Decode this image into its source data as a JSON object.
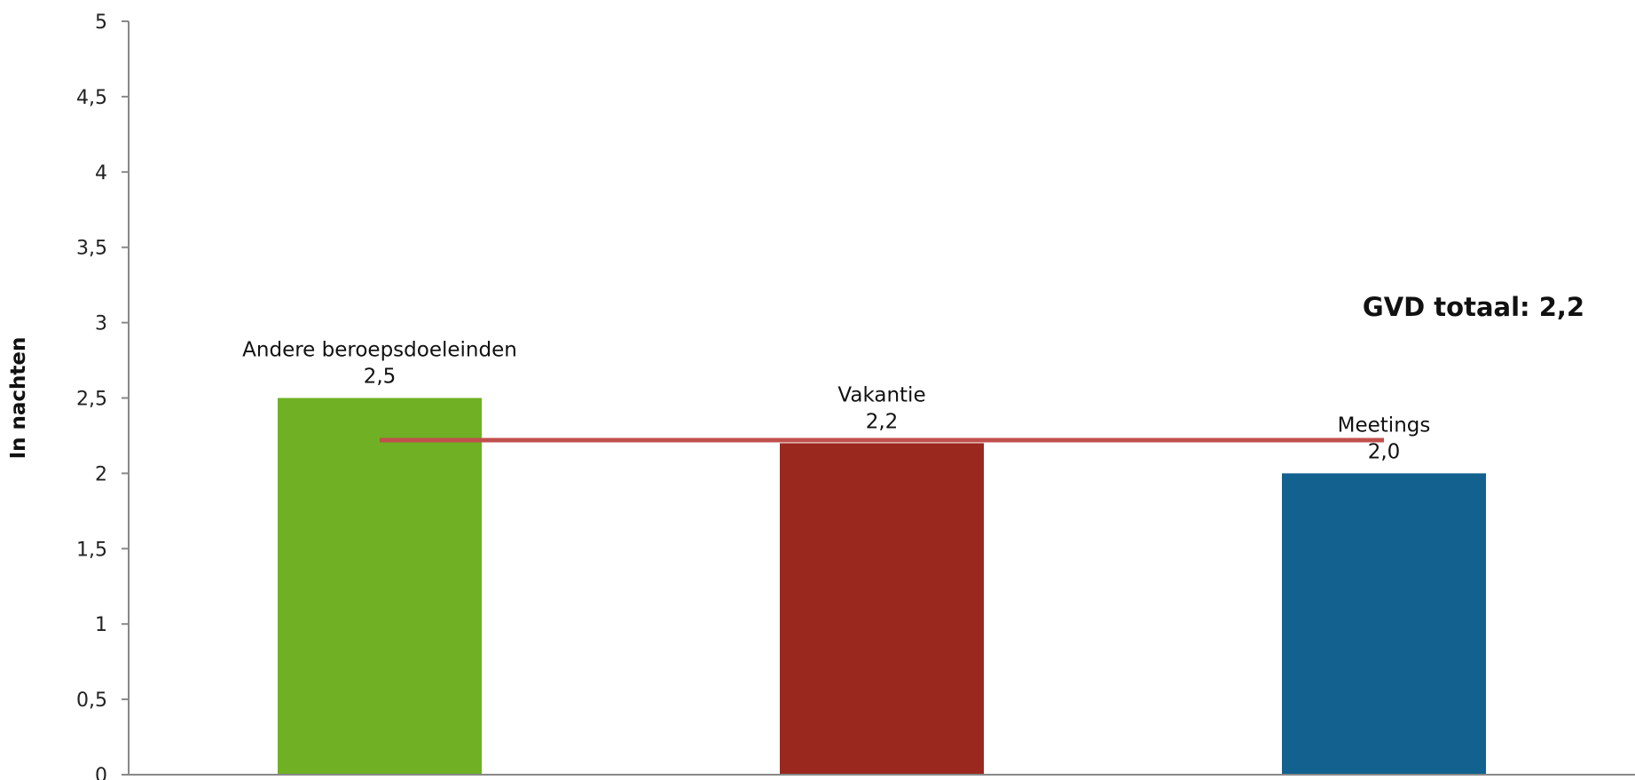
{
  "chart_data": {
    "type": "bar",
    "categories": [
      "Andere beroepsdoeleinden",
      "Vakantie",
      "Meetings"
    ],
    "values": [
      2.5,
      2.2,
      2.0
    ],
    "value_labels": [
      "2,5",
      "2,2",
      "2,0"
    ],
    "colors": [
      "#6fb024",
      "#9a281e",
      "#12618f"
    ],
    "ylabel": "In nachten",
    "ylim": [
      0,
      5
    ],
    "yticks": [
      0,
      0.5,
      1,
      1.5,
      2,
      2.5,
      3,
      3.5,
      4,
      4.5,
      5
    ],
    "ytick_labels": [
      "0",
      "0,5",
      "1",
      "1,5",
      "2",
      "2,5",
      "3",
      "3,5",
      "4",
      "4,5",
      "5"
    ],
    "reference_line": {
      "value": 2.22,
      "color": "#c0504d"
    },
    "total_annotation": "GVD totaal: 2,2",
    "grid": false,
    "legend": "none"
  }
}
